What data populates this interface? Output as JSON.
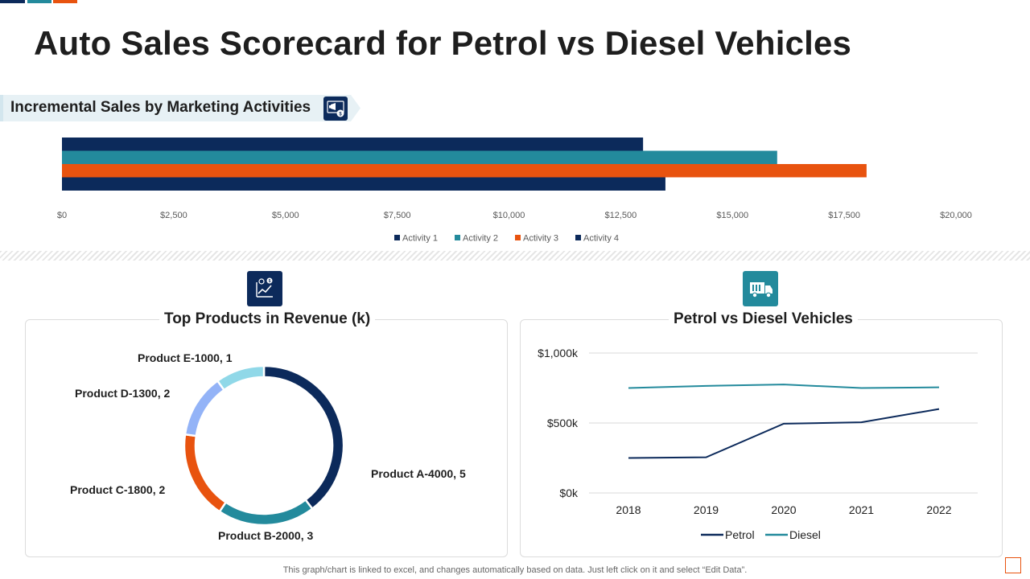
{
  "title": "Auto Sales Scorecard for Petrol vs Diesel Vehicles",
  "colors": {
    "navy": "#0c2a5b",
    "teal": "#238a9c",
    "orange": "#e8530f",
    "periwinkle": "#93b3f7",
    "lightblue": "#90d8e8"
  },
  "footer_note": "This graph/chart is linked to excel,  and changes automatically based on data. Just left click on it and select “Edit Data”.",
  "chart_data": [
    {
      "id": "incremental_sales",
      "type": "bar",
      "orientation": "horizontal",
      "title": "Incremental Sales by Marketing Activities",
      "icon": "marketing-megaphone-icon",
      "series": [
        {
          "name": "Activity 1",
          "values": [
            13000
          ],
          "color": "#0c2a5b"
        },
        {
          "name": "Activity 2",
          "values": [
            16000
          ],
          "color": "#238a9c"
        },
        {
          "name": "Activity 3",
          "values": [
            18000
          ],
          "color": "#e8530f"
        },
        {
          "name": "Activity 4",
          "values": [
            13500
          ],
          "color": "#0c2a5b"
        }
      ],
      "xlim": [
        0,
        20000
      ],
      "xticks": [
        0,
        2500,
        5000,
        7500,
        10000,
        12500,
        15000,
        17500,
        20000
      ],
      "xtick_labels": [
        "$0",
        "$2,500",
        "$5,000",
        "$7,500",
        "$10,000",
        "$12,500",
        "$15,000",
        "$17,500",
        "$20,000"
      ],
      "legend": "bottom"
    },
    {
      "id": "top_products",
      "type": "pie",
      "donut": true,
      "title": "Top Products in Revenue (k)",
      "icon": "revenue-growth-icon",
      "slices": [
        {
          "name": "Product A",
          "value": 4000,
          "label": "Product A-4000, 5",
          "color": "#0c2a5b"
        },
        {
          "name": "Product B",
          "value": 2000,
          "label": "Product B-2000, 3",
          "color": "#238a9c"
        },
        {
          "name": "Product C",
          "value": 1800,
          "label": "Product C-1800, 2",
          "color": "#e8530f"
        },
        {
          "name": "Product D",
          "value": 1300,
          "label": "Product D-1300, 2",
          "color": "#93b3f7"
        },
        {
          "name": "Product E",
          "value": 1000,
          "label": "Product E-1000, 1",
          "color": "#90d8e8"
        }
      ]
    },
    {
      "id": "petrol_vs_diesel",
      "type": "line",
      "title": "Petrol vs Diesel Vehicles",
      "icon": "truck-icon",
      "x": [
        "2018",
        "2019",
        "2020",
        "2021",
        "2022"
      ],
      "series": [
        {
          "name": "Petrol",
          "values": [
            250,
            255,
            495,
            505,
            600
          ],
          "color": "#0c2a5b"
        },
        {
          "name": "Diesel",
          "values": [
            750,
            765,
            775,
            750,
            755
          ],
          "color": "#238a9c"
        }
      ],
      "ylim": [
        0,
        1000
      ],
      "yticks": [
        0,
        500,
        1000
      ],
      "ytick_labels": [
        "$0k",
        "$500k",
        "$1,000k"
      ],
      "grid": true,
      "legend": "bottom"
    }
  ]
}
